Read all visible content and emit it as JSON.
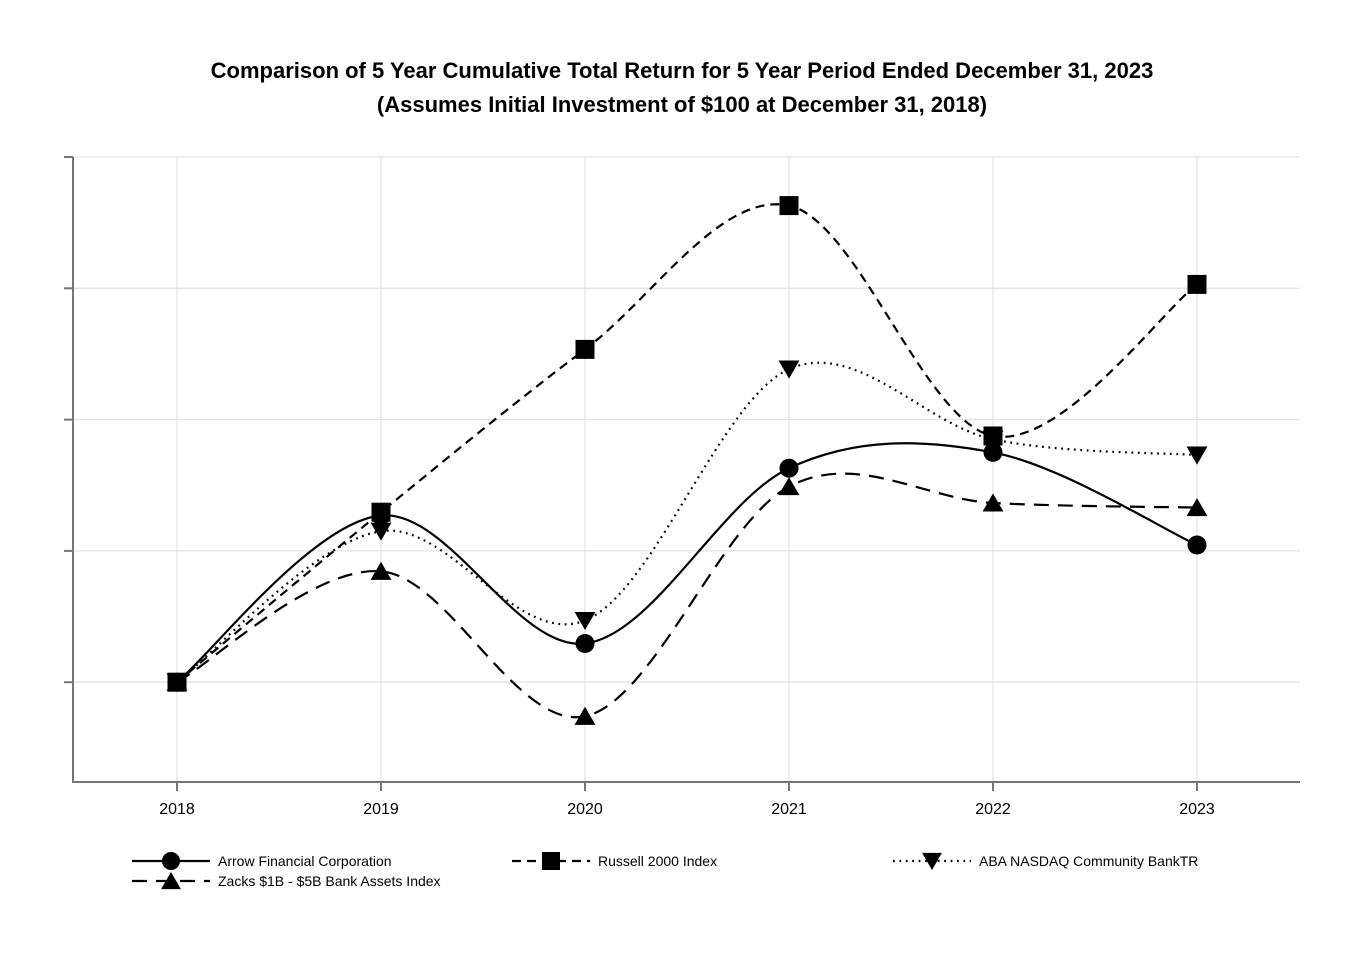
{
  "chart_data": {
    "type": "line",
    "title": "Comparison of 5 Year Cumulative Total Return for 5 Year Period Ended December 31, 2023",
    "subtitle": "(Assumes Initial Investment of $100 at December 31, 2018)",
    "x_labels": [
      "2018",
      "2019",
      "2020",
      "2021",
      "2022",
      "2023"
    ],
    "ylim": [
      84.8,
      180
    ],
    "yticks": [
      100,
      120,
      140,
      160,
      180
    ],
    "ytick_labels_visible": false,
    "grid": true,
    "legend_position": "bottom",
    "series": [
      {
        "name": "Arrow Financial Corporation",
        "marker": "circle",
        "line": "solid",
        "values": [
          100,
          125.4,
          105.9,
          132.6,
          135.0,
          120.9
        ]
      },
      {
        "name": "Russell 2000 Index",
        "marker": "square",
        "line": "dashed",
        "values": [
          100,
          125.9,
          150.7,
          172.6,
          137.5,
          160.6
        ]
      },
      {
        "name": "ABA NASDAQ Community BankTR",
        "marker": "triangle-down",
        "line": "dotted",
        "values": [
          100,
          123.0,
          109.4,
          147.7,
          137.0,
          134.6
        ]
      },
      {
        "name": "Zacks $1B - $5B Bank Assets Index",
        "marker": "triangle-up",
        "line": "long-dash",
        "values": [
          100,
          116.9,
          94.8,
          129.8,
          127.3,
          126.6
        ]
      }
    ],
    "colors": {
      "series": "#000000",
      "grid": "#e4e4e4",
      "axis": "#757575",
      "text": "#000000",
      "background": "#ffffff"
    }
  }
}
